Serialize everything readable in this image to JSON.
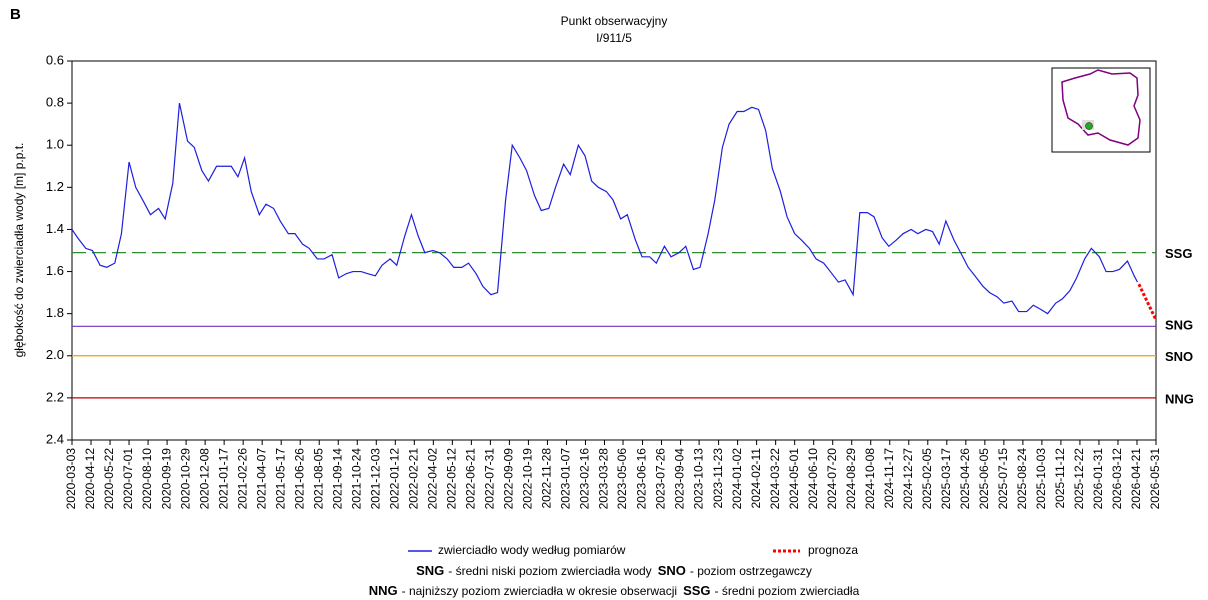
{
  "chart_data": {
    "type": "line",
    "panel_label": "B",
    "title": "Punkt obserwacyjny",
    "subtitle": "I/911/5",
    "y_label": "głębokość do zwierciadła wody [m] p.p.t.",
    "ylim": [
      0.6,
      2.4
    ],
    "y_inverted": true,
    "yticks": [
      0.6,
      0.8,
      {
        "value": 1,
        "label": "1.0"
      },
      1.2,
      1.4,
      1.6,
      1.8,
      {
        "value": 2,
        "label": "2.0"
      },
      2.2,
      2.4
    ],
    "xlim": [
      "2020-03-03",
      "2026-05-31"
    ],
    "xticks": [
      "2020-03-03",
      "2020-04-12",
      "2020-05-22",
      "2020-07-01",
      "2020-08-10",
      "2020-09-19",
      "2020-10-29",
      "2020-12-08",
      "2021-01-17",
      "2021-02-26",
      "2021-04-07",
      "2021-05-17",
      "2021-06-26",
      "2021-08-05",
      "2021-09-14",
      "2021-10-24",
      "2021-12-03",
      "2022-01-12",
      "2022-02-21",
      "2022-04-02",
      "2022-05-12",
      "2022-06-21",
      "2022-07-31",
      "2022-09-09",
      "2022-10-19",
      "2022-11-28",
      "2023-01-07",
      "2023-02-16",
      "2023-03-28",
      "2023-05-06",
      "2023-06-16",
      "2023-07-26",
      "2023-09-04",
      "2023-10-13",
      "2023-11-23",
      "2024-01-02",
      "2024-02-11",
      "2024-03-22",
      "2024-05-01",
      "2024-06-10",
      "2024-07-20",
      "2024-08-29",
      "2024-10-08",
      "2024-11-17",
      "2024-12-27",
      "2025-02-05",
      "2025-03-17",
      "2025-04-26",
      "2025-06-05",
      "2025-07-15",
      "2025-08-24",
      "2025-10-03",
      "2025-11-12",
      "2025-12-22",
      "2026-01-31",
      "2026-03-12",
      "2026-04-21",
      "2026-05-31"
    ],
    "series": [
      {
        "name": "zwierciadło wody według pomiarów",
        "color": "#1f1fe0",
        "style": "solid",
        "x": [
          "2020-03-03",
          "2020-03-15",
          "2020-04-01",
          "2020-04-15",
          "2020-05-01",
          "2020-05-15",
          "2020-06-01",
          "2020-06-15",
          "2020-07-01",
          "2020-07-15",
          "2020-08-01",
          "2020-08-15",
          "2020-09-01",
          "2020-09-15",
          "2020-10-01",
          "2020-10-15",
          "2020-11-01",
          "2020-11-15",
          "2020-12-01",
          "2020-12-15",
          "2021-01-01",
          "2021-01-15",
          "2021-02-01",
          "2021-02-15",
          "2021-03-01",
          "2021-03-15",
          "2021-04-01",
          "2021-04-15",
          "2021-05-01",
          "2021-05-15",
          "2021-06-01",
          "2021-06-15",
          "2021-07-01",
          "2021-07-15",
          "2021-08-01",
          "2021-08-15",
          "2021-09-01",
          "2021-09-15",
          "2021-10-01",
          "2021-10-15",
          "2021-11-01",
          "2021-11-15",
          "2021-12-01",
          "2021-12-15",
          "2022-01-01",
          "2022-01-15",
          "2022-02-01",
          "2022-02-15",
          "2022-03-01",
          "2022-03-15",
          "2022-04-01",
          "2022-04-15",
          "2022-05-01",
          "2022-05-15",
          "2022-06-01",
          "2022-06-15",
          "2022-07-01",
          "2022-07-15",
          "2022-08-01",
          "2022-08-15",
          "2022-09-01",
          "2022-09-15",
          "2022-10-01",
          "2022-10-15",
          "2022-11-01",
          "2022-11-15",
          "2022-12-01",
          "2022-12-15",
          "2023-01-01",
          "2023-01-15",
          "2023-02-01",
          "2023-02-15",
          "2023-03-01",
          "2023-03-15",
          "2023-04-01",
          "2023-04-15",
          "2023-05-01",
          "2023-05-15",
          "2023-06-01",
          "2023-06-15",
          "2023-07-01",
          "2023-07-15",
          "2023-08-01",
          "2023-08-15",
          "2023-09-01",
          "2023-09-15",
          "2023-10-01",
          "2023-10-15",
          "2023-11-01",
          "2023-11-15",
          "2023-12-01",
          "2023-12-15",
          "2024-01-01",
          "2024-01-15",
          "2024-02-01",
          "2024-02-15",
          "2024-03-01",
          "2024-03-15",
          "2024-04-01",
          "2024-04-15",
          "2024-05-01",
          "2024-05-15",
          "2024-06-01",
          "2024-06-15",
          "2024-07-01",
          "2024-07-15",
          "2024-08-01",
          "2024-08-15",
          "2024-09-01",
          "2024-09-15",
          "2024-10-01",
          "2024-10-15",
          "2024-11-01",
          "2024-11-15",
          "2024-12-01",
          "2024-12-15",
          "2025-01-01",
          "2025-01-15",
          "2025-02-01",
          "2025-02-15",
          "2025-03-01",
          "2025-03-15",
          "2025-04-01",
          "2025-04-15",
          "2025-05-01",
          "2025-05-15",
          "2025-06-01",
          "2025-06-15",
          "2025-07-01",
          "2025-07-15",
          "2025-08-01",
          "2025-08-15",
          "2025-09-01",
          "2025-09-15",
          "2025-10-01",
          "2025-10-15",
          "2025-11-01",
          "2025-11-15",
          "2025-12-01",
          "2025-12-15",
          "2026-01-01",
          "2026-01-15",
          "2026-02-01",
          "2026-02-15",
          "2026-03-01",
          "2026-03-15",
          "2026-04-01",
          "2026-04-15",
          "2026-04-22"
        ],
        "values": [
          1.4,
          1.44,
          1.49,
          1.5,
          1.57,
          1.58,
          1.56,
          1.42,
          1.08,
          1.2,
          1.27,
          1.33,
          1.3,
          1.35,
          1.18,
          0.8,
          0.98,
          1.01,
          1.12,
          1.17,
          1.1,
          1.1,
          1.1,
          1.15,
          1.06,
          1.22,
          1.33,
          1.28,
          1.3,
          1.36,
          1.42,
          1.42,
          1.47,
          1.49,
          1.54,
          1.54,
          1.52,
          1.63,
          1.61,
          1.6,
          1.6,
          1.61,
          1.62,
          1.57,
          1.54,
          1.57,
          1.43,
          1.33,
          1.43,
          1.51,
          1.5,
          1.51,
          1.54,
          1.58,
          1.58,
          1.56,
          1.61,
          1.67,
          1.71,
          1.7,
          1.26,
          1.0,
          1.06,
          1.12,
          1.24,
          1.31,
          1.3,
          1.2,
          1.09,
          1.14,
          1.0,
          1.05,
          1.17,
          1.2,
          1.22,
          1.26,
          1.35,
          1.33,
          1.45,
          1.53,
          1.53,
          1.56,
          1.48,
          1.53,
          1.51,
          1.48,
          1.59,
          1.58,
          1.42,
          1.26,
          1.01,
          0.9,
          0.84,
          0.84,
          0.82,
          0.83,
          0.93,
          1.11,
          1.22,
          1.34,
          1.42,
          1.45,
          1.49,
          1.54,
          1.56,
          1.6,
          1.65,
          1.64,
          1.71,
          1.32,
          1.32,
          1.34,
          1.44,
          1.48,
          1.45,
          1.42,
          1.4,
          1.42,
          1.4,
          1.41,
          1.47,
          1.36,
          1.45,
          1.51,
          1.58,
          1.62,
          1.67,
          1.7,
          1.72,
          1.75,
          1.74,
          1.79,
          1.79,
          1.76,
          1.78,
          1.8,
          1.75,
          1.73,
          1.69,
          1.63,
          1.54,
          1.49,
          1.53,
          1.6,
          1.6,
          1.59,
          1.55,
          1.62,
          1.65
        ]
      },
      {
        "name": "prognoza",
        "color": "#ff0000",
        "style": "dotted",
        "x": [
          "2026-04-25",
          "2026-05-31"
        ],
        "values": [
          1.66,
          1.83
        ]
      }
    ],
    "reference_lines": [
      {
        "label": "SSG",
        "value": 1.51,
        "color": "#2e8b2e",
        "style": "dashed",
        "description": "- średni poziom zwierciadła"
      },
      {
        "label": "SNG",
        "value": 1.86,
        "color": "#7030c0",
        "style": "solid",
        "description": "- średni niski poziom zwierciadła wody"
      },
      {
        "label": "SNO",
        "value": 2.0,
        "color": "#f0a000",
        "style": "solid",
        "description": "- poziom ostrzegawczy"
      },
      {
        "label": "NNG",
        "value": 2.2,
        "color": "#c00000",
        "style": "solid",
        "description": "- najniższy poziom zwierciadła w okresie obserwacji"
      }
    ]
  }
}
